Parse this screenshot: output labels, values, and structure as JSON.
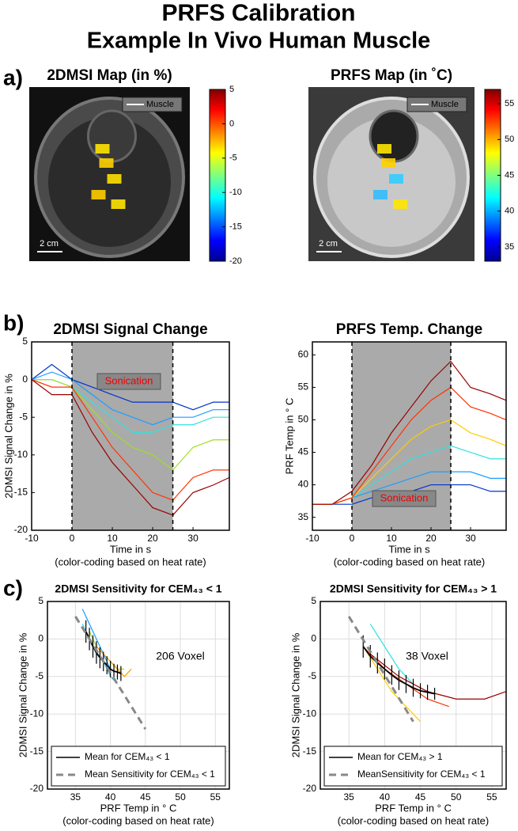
{
  "title": "PRFS Calibration",
  "subtitle": "Example In Vivo Human Muscle",
  "panel_labels": [
    "a)",
    "b)",
    "c)"
  ],
  "chart_data": [
    {
      "type": "image",
      "title": "2DMSI Map (in %)",
      "legend_label": "Muscle",
      "scalebar_label": "2 cm",
      "colorbar": {
        "lim": [
          -20,
          5
        ],
        "ticks": [
          5,
          0,
          -5,
          -10,
          -15,
          -20
        ]
      }
    },
    {
      "type": "image",
      "title": "PRFS Map (in ˚C)",
      "legend_label": "Muscle",
      "scalebar_label": "2 cm",
      "colorbar": {
        "lim": [
          33,
          57
        ],
        "ticks": [
          55,
          50,
          45,
          40,
          35
        ]
      }
    },
    {
      "type": "line",
      "title": "2DMSI Signal Change",
      "xlabel": "Time in s",
      "xnote": "(color-coding based on heat rate)",
      "ylabel": "2DMSI Signal Change in %",
      "annotation": "Sonication",
      "shaded_region": [
        0,
        25
      ],
      "grid": false,
      "xlim": [
        -10,
        39
      ],
      "ylim": [
        -20,
        5
      ],
      "xticks": [
        -10,
        0,
        10,
        20,
        30
      ],
      "yticks": [
        -20,
        -15,
        -10,
        -5,
        0,
        5
      ],
      "x": [
        -10,
        -5,
        0,
        5,
        10,
        15,
        20,
        25,
        30,
        35,
        39
      ],
      "series": [
        {
          "color": "#0033cc",
          "values": [
            0,
            2,
            0,
            -1,
            -2,
            -3,
            -3,
            -3,
            -4,
            -3,
            -3
          ]
        },
        {
          "color": "#1a9fff",
          "values": [
            0,
            1,
            0,
            -2,
            -4,
            -5,
            -6,
            -5,
            -5,
            -4,
            -4
          ]
        },
        {
          "color": "#33e0e0",
          "values": [
            0,
            0,
            -1,
            -3,
            -5,
            -7,
            -7,
            -6,
            -6,
            -5,
            -5
          ]
        },
        {
          "color": "#9fdf20",
          "values": [
            0,
            0,
            -1,
            -4,
            -7,
            -9,
            -10,
            -12,
            -9,
            -8,
            -8
          ]
        },
        {
          "color": "#ff3300",
          "values": [
            0,
            -1,
            -1,
            -5,
            -9,
            -12,
            -15,
            -16,
            -13,
            -12,
            -12
          ]
        },
        {
          "color": "#990000",
          "values": [
            0,
            -2,
            -2,
            -7,
            -11,
            -14,
            -17,
            -18,
            -15,
            -14,
            -13
          ]
        }
      ]
    },
    {
      "type": "line",
      "title": "PRFS Temp. Change",
      "xlabel": "Time in s",
      "xnote": "(color-coding based on heat rate)",
      "ylabel": "PRF Temp in ° C",
      "annotation": "Sonication",
      "shaded_region": [
        0,
        25
      ],
      "grid": false,
      "xlim": [
        -10,
        39
      ],
      "ylim": [
        33,
        62
      ],
      "xticks": [
        -10,
        0,
        10,
        20,
        30
      ],
      "yticks": [
        35,
        40,
        45,
        50,
        55,
        60
      ],
      "x": [
        -10,
        -5,
        0,
        5,
        10,
        15,
        20,
        25,
        30,
        35,
        39
      ],
      "series": [
        {
          "color": "#0033cc",
          "values": [
            37,
            37,
            37,
            38,
            38,
            39,
            40,
            40,
            40,
            39,
            39
          ]
        },
        {
          "color": "#1a9fff",
          "values": [
            37,
            37,
            38,
            39,
            40,
            41,
            42,
            42,
            42,
            41,
            41
          ]
        },
        {
          "color": "#33e0e0",
          "values": [
            37,
            37,
            38,
            40,
            42,
            44,
            45,
            46,
            45,
            44,
            44
          ]
        },
        {
          "color": "#ffcc00",
          "values": [
            37,
            37,
            38,
            41,
            44,
            47,
            49,
            50,
            48,
            47,
            46
          ]
        },
        {
          "color": "#ff3300",
          "values": [
            37,
            37,
            38,
            42,
            46,
            50,
            53,
            55,
            52,
            51,
            50
          ]
        },
        {
          "color": "#990000",
          "values": [
            37,
            37,
            39,
            43,
            48,
            52,
            56,
            59,
            55,
            54,
            53
          ]
        }
      ]
    },
    {
      "type": "line",
      "title": "2DMSI Sensitivity for CEM₄₃ < 1",
      "xlabel": "PRF Temp in ° C",
      "xnote": "(color-coding based on heat rate)",
      "ylabel": "2DMSI Signal Change in %",
      "annotation": "206 Voxel",
      "grid": true,
      "legend": "lower left",
      "xlim": [
        31,
        57
      ],
      "ylim": [
        -20,
        5
      ],
      "xticks": [
        35,
        40,
        45,
        50,
        55
      ],
      "yticks": [
        -20,
        -15,
        -10,
        -5,
        0,
        5
      ],
      "series": [
        {
          "color": "#33ccff",
          "x": [
            36,
            37,
            38,
            39,
            40,
            41
          ],
          "values": [
            2,
            0,
            -2,
            -3,
            -5,
            -6
          ]
        },
        {
          "color": "#1a9fff",
          "x": [
            36,
            37,
            38,
            39,
            40
          ],
          "values": [
            4,
            2,
            0,
            -2,
            -4
          ]
        },
        {
          "color": "#9fdf20",
          "x": [
            37,
            38,
            39,
            40,
            41,
            42
          ],
          "values": [
            1,
            -1,
            -2,
            -3,
            -4,
            -4
          ]
        },
        {
          "color": "#ff9900",
          "x": [
            38,
            39,
            40,
            41,
            42,
            43
          ],
          "values": [
            -1,
            -2,
            -3,
            -4,
            -5,
            -4
          ]
        },
        {
          "name": "Mean for CEM₄₃ < 1",
          "color": "#000000",
          "x": [
            36.5,
            37,
            37.5,
            38,
            38.5,
            39,
            39.5,
            40,
            40.5,
            41,
            41.5
          ],
          "values": [
            1,
            0,
            -1,
            -1.8,
            -2.5,
            -3,
            -3.5,
            -4,
            -4.3,
            -4.4,
            -4.6
          ],
          "errors": [
            1.5,
            1.5,
            1.5,
            1.5,
            1.4,
            1.3,
            1.2,
            1.1,
            1,
            1,
            1
          ]
        },
        {
          "name": "Mean Sensitivity for CEM₄₃ < 1",
          "color": "#888888",
          "dash": true,
          "x": [
            35,
            45
          ],
          "values": [
            3,
            -12
          ]
        }
      ]
    },
    {
      "type": "line",
      "title": "2DMSI Sensitivity for CEM₄₃ > 1",
      "xlabel": "PRF Temp in ° C",
      "xnote": "(color-coding based on heat rate)",
      "ylabel": "2DMSI Signal Change in %",
      "annotation": "38 Voxel",
      "grid": true,
      "legend": "lower left",
      "xlim": [
        31,
        57
      ],
      "ylim": [
        -20,
        5
      ],
      "xticks": [
        35,
        40,
        45,
        50,
        55
      ],
      "yticks": [
        -20,
        -15,
        -10,
        -5,
        0,
        5
      ],
      "series": [
        {
          "color": "#33e0e0",
          "x": [
            38,
            40,
            42,
            44
          ],
          "values": [
            2,
            -1,
            -4,
            -6
          ]
        },
        {
          "color": "#ffcc00",
          "x": [
            37,
            39,
            41,
            43,
            45
          ],
          "values": [
            -1,
            -4,
            -7,
            -9,
            -11
          ]
        },
        {
          "color": "#ff3300",
          "x": [
            37,
            40,
            43,
            46,
            49
          ],
          "values": [
            -1,
            -4,
            -6,
            -8,
            -9
          ]
        },
        {
          "color": "#990000",
          "x": [
            38,
            42,
            46,
            50,
            54,
            57
          ],
          "values": [
            -2,
            -5,
            -7,
            -8,
            -8,
            -7
          ]
        },
        {
          "name": "Mean for CEM₄₃ > 1",
          "color": "#000000",
          "x": [
            37,
            38,
            39,
            40,
            41,
            42,
            43,
            44,
            45,
            46,
            47
          ],
          "values": [
            -1,
            -2.3,
            -3.2,
            -4,
            -4.8,
            -5.5,
            -6,
            -6.5,
            -6.9,
            -7.1,
            -7.3
          ],
          "errors": [
            1.5,
            1.5,
            1.4,
            1.4,
            1.3,
            1.3,
            1.2,
            1.2,
            1,
            1,
            0.8
          ]
        },
        {
          "name": "MeanSensitivity for CEM₄₃ < 1",
          "color": "#888888",
          "dash": true,
          "x": [
            35,
            44
          ],
          "values": [
            3,
            -11
          ]
        }
      ]
    }
  ]
}
